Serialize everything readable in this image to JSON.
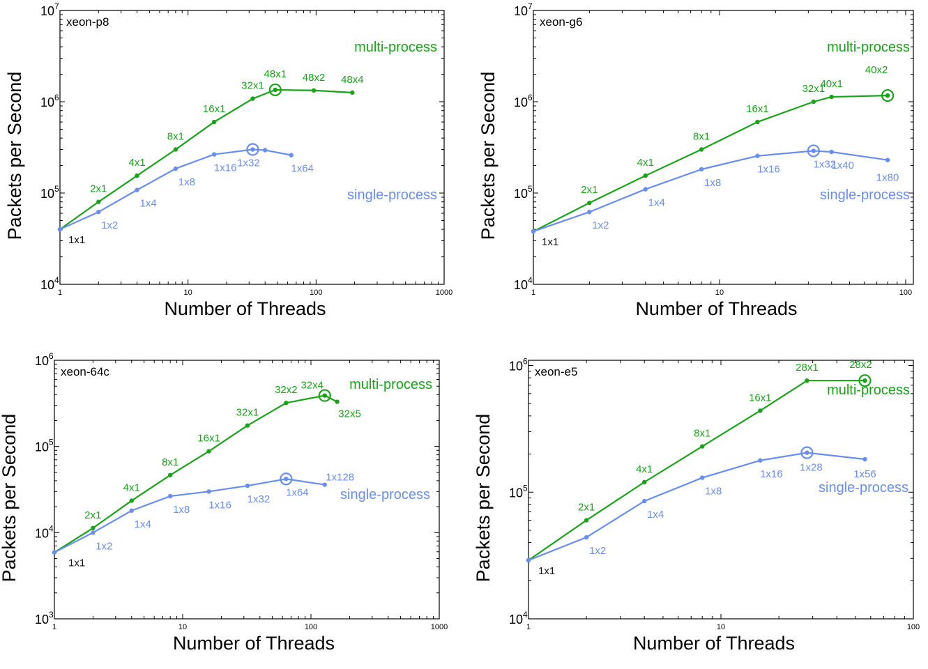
{
  "colors": {
    "multi": "#1aa31a",
    "single": "#6a8eee",
    "base": "#111111"
  },
  "chart_data": [
    {
      "type": "line",
      "title": "xeon-p8",
      "xlabel": "Number of Threads",
      "ylabel": "Packets per Second",
      "x_scale": "log",
      "y_scale": "log",
      "xlim": [
        1,
        1000
      ],
      "ylim": [
        10000,
        10000000
      ],
      "x_ticks": [
        {
          "v": 1,
          "label": "1"
        },
        {
          "v": 10,
          "label": "10"
        },
        {
          "v": 100,
          "label": "100"
        },
        {
          "v": 1000,
          "label": "1000"
        }
      ],
      "y_ticks": [
        {
          "v": 10000,
          "base": "10",
          "exp": "4"
        },
        {
          "v": 100000,
          "base": "10",
          "exp": "5"
        },
        {
          "v": 1000000,
          "base": "10",
          "exp": "6"
        },
        {
          "v": 10000000,
          "base": "10",
          "exp": "7"
        }
      ],
      "series": [
        {
          "name": "multi-process",
          "points": [
            {
              "x": 1,
              "y": 40000,
              "label": "1x1"
            },
            {
              "x": 2,
              "y": 80000,
              "label": "2x1"
            },
            {
              "x": 4,
              "y": 155000,
              "label": "4x1"
            },
            {
              "x": 8,
              "y": 300000,
              "label": "8x1"
            },
            {
              "x": 16,
              "y": 600000,
              "label": "16x1"
            },
            {
              "x": 32,
              "y": 1080000,
              "label": "32x1"
            },
            {
              "x": 48,
              "y": 1350000,
              "label": "48x1",
              "peak": true
            },
            {
              "x": 96,
              "y": 1330000,
              "label": "48x2"
            },
            {
              "x": 192,
              "y": 1260000,
              "label": "48x4"
            }
          ]
        },
        {
          "name": "single-process",
          "points": [
            {
              "x": 1,
              "y": 40000
            },
            {
              "x": 2,
              "y": 62000,
              "label": "1x2"
            },
            {
              "x": 4,
              "y": 108000,
              "label": "1x4"
            },
            {
              "x": 8,
              "y": 185000,
              "label": "1x8"
            },
            {
              "x": 16,
              "y": 265000,
              "label": "1x16"
            },
            {
              "x": 32,
              "y": 300000,
              "label": "1x32",
              "peak": true
            },
            {
              "x": 40,
              "y": 295000
            },
            {
              "x": 64,
              "y": 260000,
              "label": "1x64"
            }
          ]
        }
      ]
    },
    {
      "type": "line",
      "title": "xeon-g6",
      "xlabel": "Number of Threads",
      "ylabel": "Packets per Second",
      "x_scale": "log",
      "y_scale": "log",
      "xlim": [
        1,
        110
      ],
      "ylim": [
        10000,
        10000000
      ],
      "x_ticks": [
        {
          "v": 1,
          "label": "1"
        },
        {
          "v": 10,
          "label": "10"
        },
        {
          "v": 100,
          "label": "100"
        }
      ],
      "y_ticks": [
        {
          "v": 10000,
          "base": "10",
          "exp": "4"
        },
        {
          "v": 100000,
          "base": "10",
          "exp": "5"
        },
        {
          "v": 1000000,
          "base": "10",
          "exp": "6"
        },
        {
          "v": 10000000,
          "base": "10",
          "exp": "7"
        }
      ],
      "series": [
        {
          "name": "multi-process",
          "points": [
            {
              "x": 1,
              "y": 38000,
              "label": "1x1"
            },
            {
              "x": 2,
              "y": 78000,
              "label": "2x1"
            },
            {
              "x": 4,
              "y": 155000,
              "label": "4x1"
            },
            {
              "x": 8,
              "y": 300000,
              "label": "8x1"
            },
            {
              "x": 16,
              "y": 600000,
              "label": "16x1"
            },
            {
              "x": 32,
              "y": 1000000,
              "label": "32x1"
            },
            {
              "x": 40,
              "y": 1130000,
              "label": "40x1"
            },
            {
              "x": 80,
              "y": 1170000,
              "label": "40x2",
              "peak": true
            }
          ]
        },
        {
          "name": "single-process",
          "points": [
            {
              "x": 1,
              "y": 38000
            },
            {
              "x": 2,
              "y": 62000,
              "label": "1x2"
            },
            {
              "x": 4,
              "y": 110000,
              "label": "1x4"
            },
            {
              "x": 8,
              "y": 182000,
              "label": "1x8"
            },
            {
              "x": 16,
              "y": 255000,
              "label": "1x16"
            },
            {
              "x": 32,
              "y": 290000,
              "label": "1x32",
              "peak": true
            },
            {
              "x": 40,
              "y": 282000,
              "label": "1x40"
            },
            {
              "x": 80,
              "y": 230000,
              "label": "1x80"
            }
          ]
        }
      ]
    },
    {
      "type": "line",
      "title": "xeon-64c",
      "xlabel": "Number of Threads",
      "ylabel": "Packets per Second",
      "x_scale": "log",
      "y_scale": "log",
      "xlim": [
        1,
        1000
      ],
      "ylim": [
        1000,
        1000000
      ],
      "x_ticks": [
        {
          "v": 1,
          "label": "1"
        },
        {
          "v": 10,
          "label": "10"
        },
        {
          "v": 100,
          "label": "100"
        },
        {
          "v": 1000,
          "label": "1000"
        }
      ],
      "y_ticks": [
        {
          "v": 1000,
          "base": "10",
          "exp": "3"
        },
        {
          "v": 10000,
          "base": "10",
          "exp": "4"
        },
        {
          "v": 100000,
          "base": "10",
          "exp": "5"
        },
        {
          "v": 1000000,
          "base": "10",
          "exp": "6"
        }
      ],
      "series": [
        {
          "name": "multi-process",
          "points": [
            {
              "x": 1,
              "y": 5900,
              "label": "1x1"
            },
            {
              "x": 2,
              "y": 11300,
              "label": "2x1"
            },
            {
              "x": 4,
              "y": 23500,
              "label": "4x1"
            },
            {
              "x": 8,
              "y": 46500,
              "label": "8x1"
            },
            {
              "x": 16,
              "y": 88000,
              "label": "16x1"
            },
            {
              "x": 32,
              "y": 175000,
              "label": "32x1"
            },
            {
              "x": 64,
              "y": 320000,
              "label": "32x2"
            },
            {
              "x": 128,
              "y": 390000,
              "label": "32x4",
              "peak": true
            },
            {
              "x": 160,
              "y": 330000,
              "label": "32x5"
            }
          ]
        },
        {
          "name": "single-process",
          "points": [
            {
              "x": 1,
              "y": 5900
            },
            {
              "x": 2,
              "y": 10000,
              "label": "1x2"
            },
            {
              "x": 4,
              "y": 18000,
              "label": "1x4"
            },
            {
              "x": 8,
              "y": 26500,
              "label": "1x8"
            },
            {
              "x": 16,
              "y": 30000,
              "label": "1x16"
            },
            {
              "x": 32,
              "y": 35000,
              "label": "1x32"
            },
            {
              "x": 64,
              "y": 42000,
              "label": "1x64",
              "peak": true
            },
            {
              "x": 128,
              "y": 36000,
              "label": "1x128"
            }
          ]
        }
      ]
    },
    {
      "type": "line",
      "title": "xeon-e5",
      "xlabel": "Number of Threads",
      "ylabel": "Packets per Second",
      "x_scale": "log",
      "y_scale": "log",
      "xlim": [
        1,
        100
      ],
      "ylim": [
        10000,
        1100000
      ],
      "x_ticks": [
        {
          "v": 1,
          "label": "1"
        },
        {
          "v": 10,
          "label": "10"
        },
        {
          "v": 100,
          "label": "100"
        }
      ],
      "y_ticks": [
        {
          "v": 10000,
          "base": "10",
          "exp": "4"
        },
        {
          "v": 100000,
          "base": "10",
          "exp": "5"
        },
        {
          "v": 1000000,
          "base": "10",
          "exp": "6"
        }
      ],
      "series": [
        {
          "name": "multi-process",
          "points": [
            {
              "x": 1,
              "y": 29000,
              "label": "1x1"
            },
            {
              "x": 2,
              "y": 60000,
              "label": "2x1"
            },
            {
              "x": 4,
              "y": 120000,
              "label": "4x1"
            },
            {
              "x": 8,
              "y": 230000,
              "label": "8x1"
            },
            {
              "x": 16,
              "y": 440000,
              "label": "16x1"
            },
            {
              "x": 28,
              "y": 760000,
              "label": "28x1"
            },
            {
              "x": 56,
              "y": 760000,
              "label": "28x2",
              "peak": true
            }
          ]
        },
        {
          "name": "single-process",
          "points": [
            {
              "x": 1,
              "y": 29000
            },
            {
              "x": 2,
              "y": 44000,
              "label": "1x2"
            },
            {
              "x": 4,
              "y": 85000,
              "label": "1x4"
            },
            {
              "x": 8,
              "y": 130000,
              "label": "1x8"
            },
            {
              "x": 16,
              "y": 178000,
              "label": "1x16"
            },
            {
              "x": 28,
              "y": 205000,
              "label": "1x28",
              "peak": true
            },
            {
              "x": 56,
              "y": 182000,
              "label": "1x56"
            }
          ]
        }
      ]
    }
  ]
}
